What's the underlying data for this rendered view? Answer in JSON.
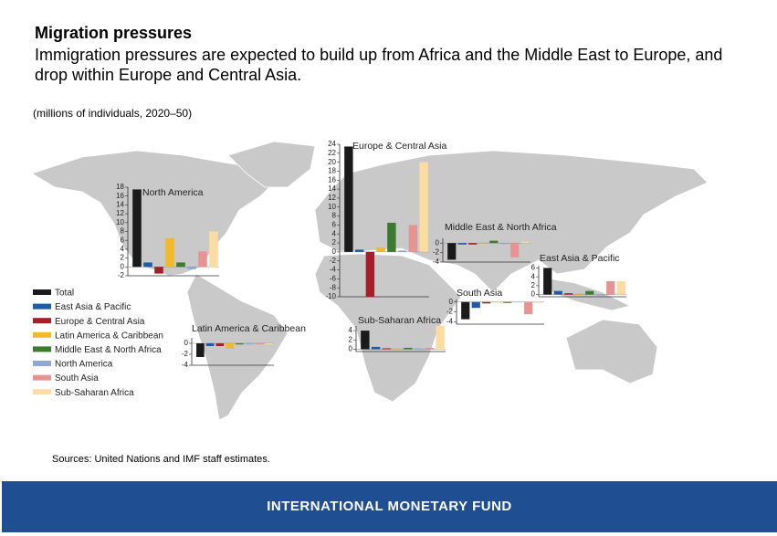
{
  "header": {
    "title": "Migration pressures",
    "subtitle": "Immigration pressures are expected to build up from Africa and the Middle East to Europe, and drop within Europe and Central Asia.",
    "unit": "(millions of individuals, 2020–50)"
  },
  "legend": {
    "items": [
      {
        "name": "Total",
        "color": "#1a1a1a"
      },
      {
        "name": "East Asia & Pacific",
        "color": "#1f5aa6"
      },
      {
        "name": "Europe & Central Asia",
        "color": "#a3202a"
      },
      {
        "name": "Latin America & Caribbean",
        "color": "#f2b92b"
      },
      {
        "name": "Middle East & North Africa",
        "color": "#3b7a2f"
      },
      {
        "name": "North America",
        "color": "#8ea9d8"
      },
      {
        "name": "South Asia",
        "color": "#e69394"
      },
      {
        "name": "Sub-Saharan Africa",
        "color": "#fcdca2"
      }
    ]
  },
  "chart_data": [
    {
      "type": "bar",
      "title": "North America",
      "values": [
        17.5,
        1,
        -1.5,
        6.5,
        1,
        -0.5,
        3.5,
        8
      ],
      "ylim": [
        -2,
        18
      ],
      "yticks": [
        -2,
        0,
        2,
        4,
        6,
        8,
        10,
        12,
        14,
        16,
        18
      ]
    },
    {
      "type": "bar",
      "title": "Europe & Central Asia",
      "values": [
        23.5,
        0.5,
        -10,
        1,
        6.5,
        0.3,
        6,
        20
      ],
      "ylim": [
        -10,
        24
      ],
      "yticks": [
        -10,
        -8,
        -6,
        -4,
        -2,
        0,
        2,
        4,
        6,
        8,
        10,
        12,
        14,
        16,
        18,
        20,
        22,
        24
      ]
    },
    {
      "type": "bar",
      "title": "Middle East & North Africa",
      "values": [
        -3.5,
        -0.3,
        -0.3,
        0.2,
        0.5,
        -0.2,
        -3,
        0.3
      ],
      "ylim": [
        -4,
        1
      ],
      "yticks": [
        -4,
        -2,
        0
      ]
    },
    {
      "type": "bar",
      "title": "East Asia & Pacific",
      "values": [
        6,
        0.8,
        0.3,
        0.3,
        0.8,
        -0.2,
        3,
        3
      ],
      "ylim": [
        -0.5,
        6.5
      ],
      "yticks": [
        0,
        2,
        4,
        6
      ]
    },
    {
      "type": "bar",
      "title": "South Asia",
      "values": [
        -3.5,
        -1.2,
        -0.3,
        -0.1,
        -0.2,
        -0.1,
        -2.5,
        -0.2
      ],
      "ylim": [
        -4.5,
        0.5
      ],
      "yticks": [
        -4,
        -2,
        0
      ]
    },
    {
      "type": "bar",
      "title": "Sub-Saharan Africa",
      "values": [
        4,
        0.5,
        0.2,
        0.2,
        0.3,
        0.2,
        0.3,
        5
      ],
      "ylim": [
        -0.5,
        5
      ],
      "yticks": [
        0,
        2,
        4
      ]
    },
    {
      "type": "bar",
      "title": "Latin America & Caribbean",
      "values": [
        -2.5,
        -0.5,
        -0.5,
        -1,
        -0.2,
        -0.2,
        -0.2,
        -0.2
      ],
      "ylim": [
        -4,
        1
      ],
      "yticks": [
        -4,
        -2,
        0
      ]
    }
  ],
  "source": "Sources: United Nations and IMF staff estimates.",
  "footer": "INTERNATIONAL MONETARY FUND"
}
